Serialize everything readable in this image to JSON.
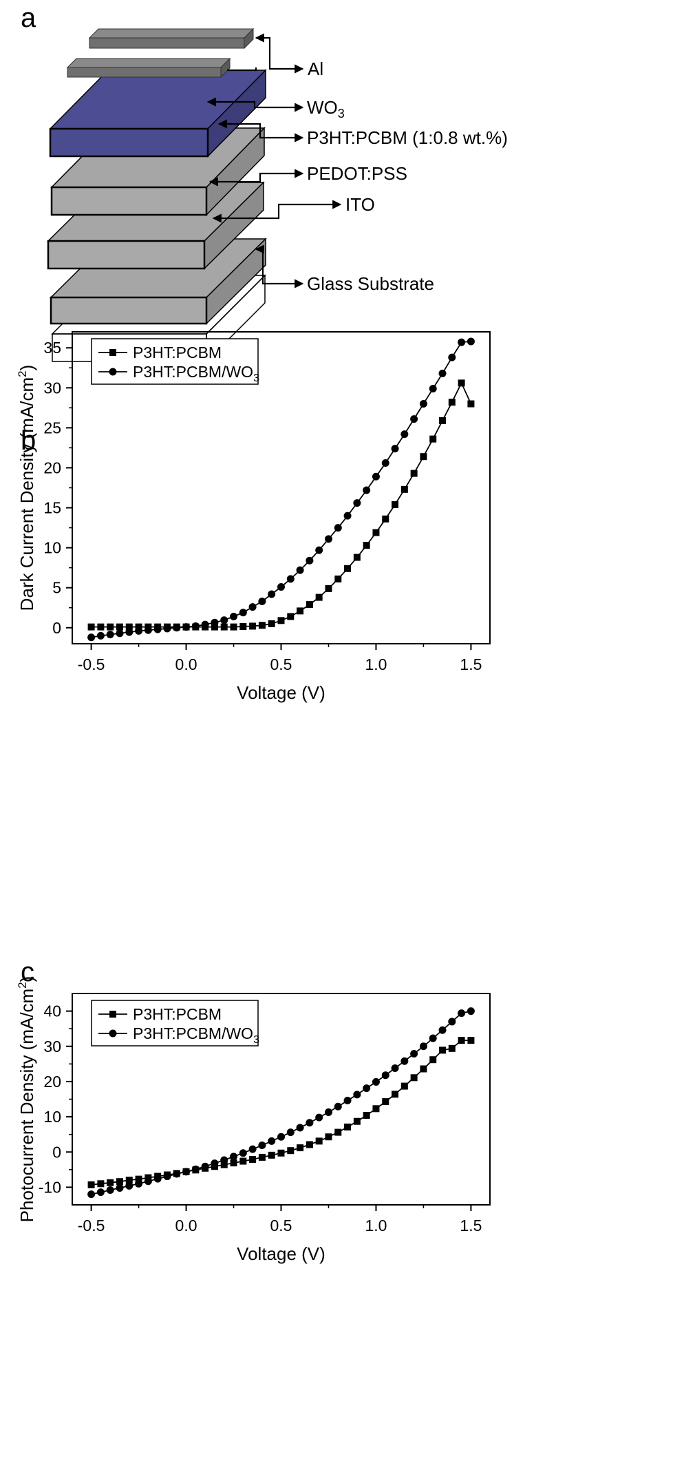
{
  "panels": {
    "a": {
      "letter": "a",
      "layer_labels": {
        "al": "Al",
        "wo3": "WO",
        "wo3_sub": "3",
        "active": "P3HT:PCBM (1:0.8 wt.%)",
        "pedot": "PEDOT:PSS",
        "ito": "ITO",
        "glass": "Glass Substrate"
      },
      "colors": {
        "electrode": "#7f7f7f",
        "wo3_layer": "#4b4b8f",
        "gray_layer": "#a9a9a9"
      }
    },
    "b": {
      "letter": "b"
    },
    "c": {
      "letter": "c"
    }
  },
  "chart_data": [
    {
      "type": "line",
      "panel": "b",
      "ylabel": "Dark Current Density (mA/cm",
      "ylabel_sup": "2",
      "ylabel_end": ")",
      "xlabel": "Voltage (V)",
      "xlim": [
        -0.6,
        1.6
      ],
      "ylim": [
        -2,
        37
      ],
      "xticks": [
        "-0.5",
        "0.0",
        "0.5",
        "1.0",
        "1.5"
      ],
      "xtick_values": [
        -0.5,
        0.0,
        0.5,
        1.0,
        1.5
      ],
      "yticks": [
        "0",
        "5",
        "10",
        "15",
        "20",
        "25",
        "30",
        "35"
      ],
      "ytick_values": [
        0,
        5,
        10,
        15,
        20,
        25,
        30,
        35
      ],
      "legend_position": "top-left",
      "series": [
        {
          "name": "P3HT:PCBM",
          "marker": "square",
          "x": [
            -0.5,
            -0.45,
            -0.4,
            -0.35,
            -0.3,
            -0.25,
            -0.2,
            -0.15,
            -0.1,
            -0.05,
            0.0,
            0.05,
            0.1,
            0.15,
            0.2,
            0.25,
            0.3,
            0.35,
            0.4,
            0.45,
            0.5,
            0.55,
            0.6,
            0.65,
            0.7,
            0.75,
            0.8,
            0.85,
            0.9,
            0.95,
            1.0,
            1.05,
            1.1,
            1.15,
            1.2,
            1.25,
            1.3,
            1.35,
            1.4,
            1.45,
            1.5
          ],
          "values": [
            0.1,
            0.1,
            0.1,
            0.1,
            0.1,
            0.1,
            0.1,
            0.1,
            0.1,
            0.1,
            0.1,
            0.1,
            0.1,
            0.1,
            0.1,
            0.1,
            0.15,
            0.2,
            0.3,
            0.5,
            0.9,
            1.4,
            2.1,
            2.9,
            3.8,
            4.9,
            6.1,
            7.4,
            8.8,
            10.3,
            11.9,
            13.6,
            15.4,
            17.3,
            19.3,
            21.4,
            23.6,
            25.9,
            28.2,
            30.6,
            28.0
          ]
        },
        {
          "name": "P3HT:PCBM/WO",
          "name_sub": "3",
          "marker": "circle",
          "x": [
            -0.5,
            -0.45,
            -0.4,
            -0.35,
            -0.3,
            -0.25,
            -0.2,
            -0.15,
            -0.1,
            -0.05,
            0.0,
            0.05,
            0.1,
            0.15,
            0.2,
            0.25,
            0.3,
            0.35,
            0.4,
            0.45,
            0.5,
            0.55,
            0.6,
            0.65,
            0.7,
            0.75,
            0.8,
            0.85,
            0.9,
            0.95,
            1.0,
            1.05,
            1.1,
            1.15,
            1.2,
            1.25,
            1.3,
            1.35,
            1.4,
            1.45,
            1.5
          ],
          "values": [
            -1.2,
            -1.0,
            -0.85,
            -0.7,
            -0.55,
            -0.4,
            -0.3,
            -0.2,
            -0.1,
            0.0,
            0.1,
            0.2,
            0.4,
            0.65,
            0.95,
            1.4,
            1.9,
            2.6,
            3.3,
            4.2,
            5.1,
            6.1,
            7.2,
            8.4,
            9.7,
            11.1,
            12.5,
            14.0,
            15.6,
            17.2,
            18.9,
            20.6,
            22.4,
            24.2,
            26.1,
            28.0,
            29.9,
            31.8,
            33.8,
            35.7,
            35.8
          ]
        }
      ]
    },
    {
      "type": "line",
      "panel": "c",
      "ylabel": "Photocurrent Density (mA/cm",
      "ylabel_sup": "2",
      "ylabel_end": ")",
      "xlabel": "Voltage (V)",
      "xlim": [
        -0.6,
        1.6
      ],
      "ylim": [
        -15,
        45
      ],
      "xticks": [
        "-0.5",
        "0.0",
        "0.5",
        "1.0",
        "1.5"
      ],
      "xtick_values": [
        -0.5,
        0.0,
        0.5,
        1.0,
        1.5
      ],
      "yticks": [
        "-10",
        "0",
        "10",
        "20",
        "30",
        "40"
      ],
      "ytick_values": [
        -10,
        0,
        10,
        20,
        30,
        40
      ],
      "legend_position": "top-left",
      "series": [
        {
          "name": "P3HT:PCBM",
          "marker": "square",
          "x": [
            -0.5,
            -0.45,
            -0.4,
            -0.35,
            -0.3,
            -0.25,
            -0.2,
            -0.15,
            -0.1,
            -0.05,
            0.0,
            0.05,
            0.1,
            0.15,
            0.2,
            0.25,
            0.3,
            0.35,
            0.4,
            0.45,
            0.5,
            0.55,
            0.6,
            0.65,
            0.7,
            0.75,
            0.8,
            0.85,
            0.9,
            0.95,
            1.0,
            1.05,
            1.1,
            1.15,
            1.2,
            1.25,
            1.3,
            1.35,
            1.4,
            1.45,
            1.5
          ],
          "values": [
            -9.3,
            -9.0,
            -8.7,
            -8.4,
            -8.0,
            -7.7,
            -7.3,
            -6.9,
            -6.5,
            -6.1,
            -5.6,
            -5.1,
            -4.6,
            -4.1,
            -3.6,
            -3.1,
            -2.6,
            -2.1,
            -1.5,
            -0.9,
            -0.3,
            0.4,
            1.2,
            2.1,
            3.1,
            4.3,
            5.6,
            7.1,
            8.7,
            10.4,
            12.3,
            14.3,
            16.4,
            18.7,
            21.1,
            23.6,
            26.2,
            28.9,
            29.4,
            31.7,
            31.7
          ]
        },
        {
          "name": "P3HT:PCBM/WO",
          "name_sub": "3",
          "marker": "circle",
          "x": [
            -0.5,
            -0.45,
            -0.4,
            -0.35,
            -0.3,
            -0.25,
            -0.2,
            -0.15,
            -0.1,
            -0.05,
            0.0,
            0.05,
            0.1,
            0.15,
            0.2,
            0.25,
            0.3,
            0.35,
            0.4,
            0.45,
            0.5,
            0.55,
            0.6,
            0.65,
            0.7,
            0.75,
            0.8,
            0.85,
            0.9,
            0.95,
            1.0,
            1.05,
            1.1,
            1.15,
            1.2,
            1.25,
            1.3,
            1.35,
            1.4,
            1.45,
            1.5
          ],
          "values": [
            -12.0,
            -11.4,
            -10.8,
            -10.2,
            -9.6,
            -9.0,
            -8.3,
            -7.6,
            -6.9,
            -6.2,
            -5.6,
            -4.9,
            -4.1,
            -3.2,
            -2.3,
            -1.3,
            -0.3,
            0.8,
            1.9,
            3.1,
            4.3,
            5.6,
            6.9,
            8.3,
            9.8,
            11.3,
            12.9,
            14.6,
            16.3,
            18.1,
            19.9,
            21.8,
            23.8,
            25.8,
            27.9,
            30.0,
            32.3,
            34.6,
            37.0,
            39.4,
            40.0
          ]
        }
      ]
    }
  ]
}
